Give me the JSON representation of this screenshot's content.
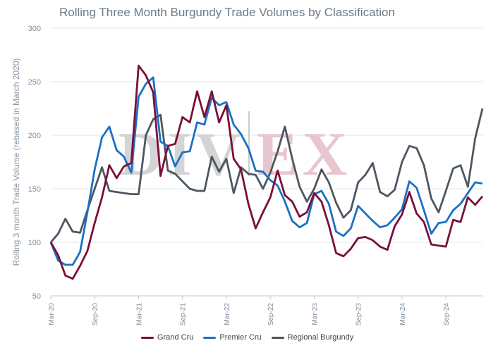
{
  "chart_data": {
    "type": "line",
    "title": "Rolling Three Month Burgundy Trade Volumes by Classification",
    "ylabel": "Rolling 3 month Trade Volume (rebased in March 2020)",
    "xlabel": "",
    "ylim": [
      50,
      300
    ],
    "yticks": [
      "50",
      "100",
      "150",
      "200",
      "250",
      "300"
    ],
    "xticks": [
      "Mar-20",
      "Sep-20",
      "Mar-21",
      "Sep-21",
      "Mar-22",
      "Sep-22",
      "Mar-23",
      "Sep-23",
      "Mar-24",
      "Sep-24"
    ],
    "x": [
      "Mar-20",
      "Apr-20",
      "May-20",
      "Jun-20",
      "Jul-20",
      "Aug-20",
      "Sep-20",
      "Oct-20",
      "Nov-20",
      "Dec-20",
      "Jan-21",
      "Feb-21",
      "Mar-21",
      "Apr-21",
      "May-21",
      "Jun-21",
      "Jul-21",
      "Aug-21",
      "Sep-21",
      "Oct-21",
      "Nov-21",
      "Dec-21",
      "Jan-22",
      "Feb-22",
      "Mar-22",
      "Apr-22",
      "May-22",
      "Jun-22",
      "Jul-22",
      "Aug-22",
      "Sep-22",
      "Oct-22",
      "Nov-22",
      "Dec-22",
      "Jan-23",
      "Feb-23",
      "Mar-23",
      "Apr-23",
      "May-23",
      "Jun-23",
      "Jul-23",
      "Aug-23",
      "Sep-23",
      "Oct-23",
      "Nov-23",
      "Dec-23",
      "Jan-24",
      "Feb-24",
      "Mar-24",
      "Apr-24",
      "May-24",
      "Jun-24",
      "Jul-24",
      "Aug-24",
      "Sep-24",
      "Oct-24",
      "Nov-24",
      "Dec-24",
      "Jan-25",
      "Feb-25"
    ],
    "grid": true,
    "legend_position": "bottom",
    "series": [
      {
        "name": "Grand Cru",
        "color": "#7a0f3a",
        "values": [
          100,
          88,
          69,
          66,
          78,
          92,
          118,
          142,
          172,
          160,
          171,
          174,
          265,
          256,
          240,
          162,
          190,
          192,
          217,
          212,
          241,
          217,
          241,
          212,
          228,
          178,
          168,
          136,
          113,
          128,
          142,
          167,
          144,
          138,
          124,
          128,
          146,
          138,
          116,
          90,
          87,
          94,
          104,
          105,
          102,
          96,
          93,
          115,
          126,
          147,
          127,
          119,
          98,
          97,
          96,
          121,
          119,
          142,
          135,
          143
        ]
      },
      {
        "name": "Premier Cru",
        "color": "#1a70c4",
        "values": [
          100,
          83,
          79,
          79,
          91,
          128,
          168,
          198,
          208,
          186,
          180,
          165,
          236,
          248,
          254,
          194,
          190,
          171,
          184,
          185,
          212,
          210,
          235,
          228,
          231,
          210,
          201,
          188,
          167,
          166,
          158,
          153,
          138,
          120,
          114,
          118,
          145,
          148,
          136,
          110,
          106,
          113,
          134,
          127,
          120,
          114,
          116,
          123,
          131,
          157,
          151,
          130,
          108,
          118,
          119,
          130,
          136,
          146,
          156,
          155
        ]
      },
      {
        "name": "Regional Burgundy",
        "color": "#4d5762",
        "values": [
          100,
          108,
          122,
          110,
          109,
          130,
          150,
          170,
          148,
          147,
          146,
          145,
          145,
          200,
          215,
          219,
          167,
          164,
          157,
          150,
          148,
          148,
          180,
          166,
          178,
          146,
          170,
          164,
          163,
          150,
          165,
          185,
          208,
          178,
          152,
          138,
          150,
          168,
          156,
          137,
          123,
          130,
          156,
          163,
          174,
          147,
          143,
          149,
          175,
          190,
          188,
          172,
          141,
          128,
          148,
          169,
          172,
          152,
          197,
          225
        ]
      }
    ]
  }
}
